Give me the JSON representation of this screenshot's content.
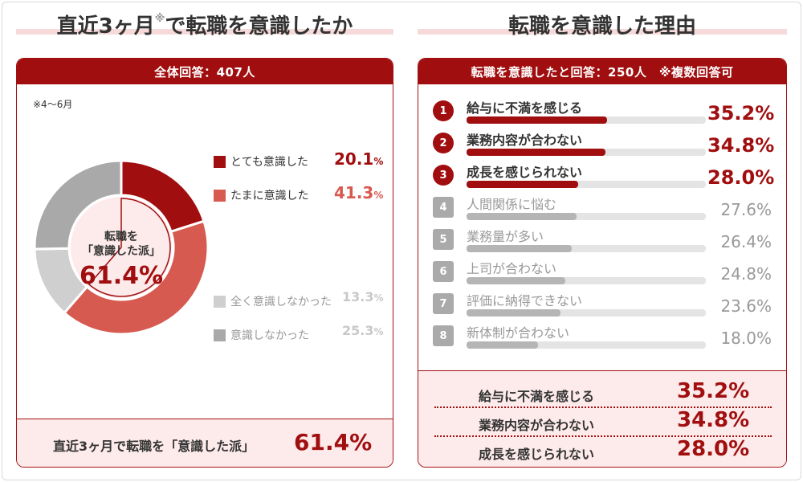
{
  "left": {
    "title": "直近3ヶ月",
    "title_mark": "※",
    "title_rest": "で転職を意識したか",
    "header": "全体回答：407人",
    "note": "※4〜6月",
    "center_label_1": "転職を",
    "center_label_2": "「意識した派」",
    "center_value": "61.4%",
    "summary_text": "直近3ヶ月で転職を「意識した派」",
    "summary_value": "61.4%"
  },
  "right": {
    "title": "転職を意識した理由",
    "header": "転職を意識したと回答：250人　※複数回答可",
    "summary": [
      {
        "label": "給与に不満を感じる",
        "value": "35.2%"
      },
      {
        "label": "業務内容が合わない",
        "value": "34.8%"
      },
      {
        "label": "成長を感じられない",
        "value": "28.0%"
      }
    ]
  },
  "colors": {
    "dark_red": "#a10e0f",
    "red": "#d75a50",
    "light_gray": "#cfcfcf",
    "gray": "#a9a9a9",
    "bar_red": "#a10e0f",
    "bar_gray": "#b5b5b5"
  },
  "chart_data": [
    {
      "type": "pie",
      "title": "直近3ヶ月※で転職を意識したか",
      "categories": [
        "とても意識した",
        "たまに意識した",
        "全く意識しなかった",
        "意識しなかった"
      ],
      "values": [
        20.1,
        41.3,
        13.3,
        25.3
      ],
      "value_labels": [
        "20.1",
        "41.3",
        "13.3",
        "25.3"
      ],
      "unit": "%",
      "colors": [
        "#a10e0f",
        "#d75a50",
        "#cfcfcf",
        "#a9a9a9"
      ]
    },
    {
      "type": "bar",
      "title": "転職を意識した理由",
      "ranks": [
        "1",
        "2",
        "3",
        "4",
        "5",
        "6",
        "7",
        "8"
      ],
      "categories": [
        "給与に不満を感じる",
        "業務内容が合わない",
        "成長を感じられない",
        "人間関係に悩む",
        "業務量が多い",
        "上司が合わない",
        "評価に納得できない",
        "新体制が合わない"
      ],
      "values": [
        35.2,
        34.8,
        28.0,
        27.6,
        26.4,
        24.8,
        23.6,
        18.0
      ],
      "value_labels": [
        "35.2%",
        "34.8%",
        "28.0%",
        "27.6%",
        "26.4%",
        "24.8%",
        "23.6%",
        "18.0%"
      ],
      "xlim": [
        0,
        60
      ]
    }
  ]
}
